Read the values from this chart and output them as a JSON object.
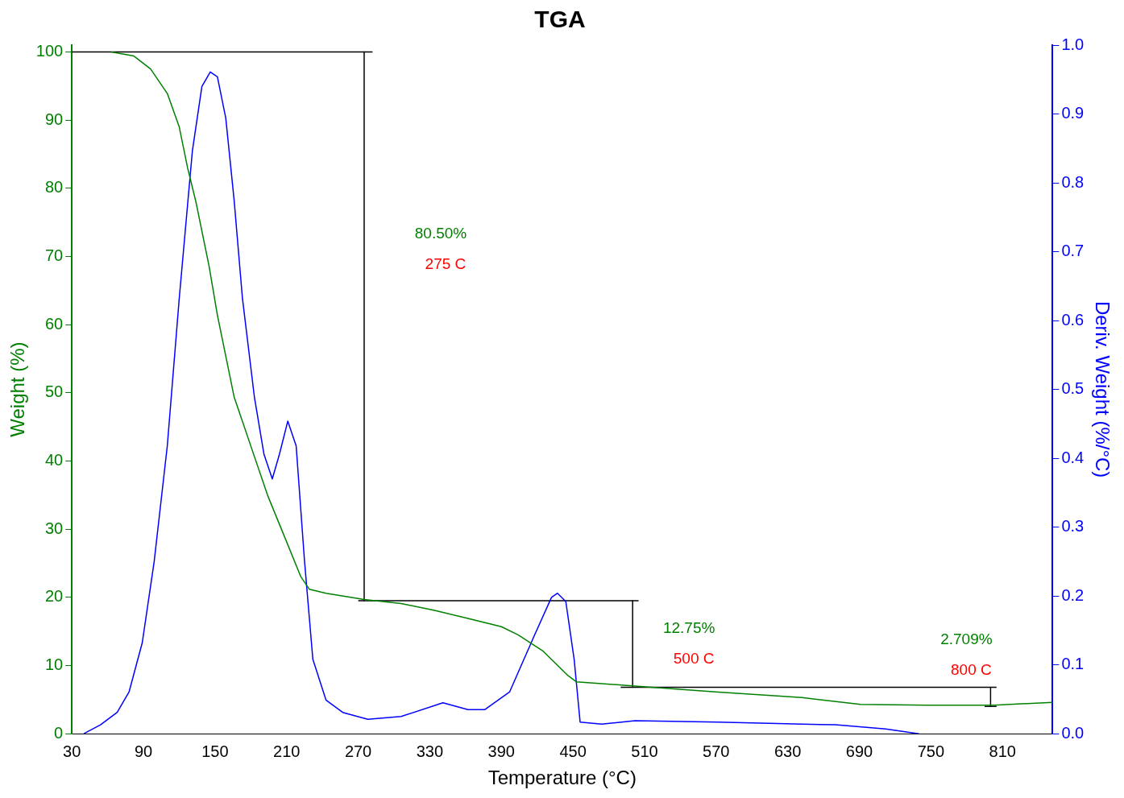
{
  "chart_data": {
    "type": "line",
    "title": "TGA",
    "xlabel": "Temperature (°C)",
    "ylabel": "Weight (%)",
    "y2label": "Deriv. Weight (%/°C)",
    "xlim": [
      30,
      852
    ],
    "xticks": [
      30,
      90,
      150,
      210,
      270,
      330,
      390,
      450,
      510,
      570,
      630,
      690,
      750,
      810
    ],
    "ylim": [
      0,
      101
    ],
    "yticks": [
      0,
      10,
      20,
      30,
      40,
      50,
      60,
      70,
      80,
      90,
      100
    ],
    "y2lim": [
      0,
      1
    ],
    "y2ticks": [
      {
        "value": 0,
        "label": "0.0"
      },
      {
        "value": 0.1,
        "label": "0.1"
      },
      {
        "value": 0.2,
        "label": "0.2"
      },
      {
        "value": 0.3,
        "label": "0.3"
      },
      {
        "value": 0.4,
        "label": "0.4"
      },
      {
        "value": 0.5,
        "label": "0.5"
      },
      {
        "value": 0.6,
        "label": "0.6"
      },
      {
        "value": 0.7,
        "label": "0.7"
      },
      {
        "value": 0.8,
        "label": "0.8"
      },
      {
        "value": 0.9,
        "label": "0.9"
      },
      {
        "value": 1,
        "label": "1.0"
      }
    ],
    "grid": false,
    "legend": false,
    "marker": "none",
    "line_style": "solid",
    "series": [
      {
        "color": "#008000",
        "x": [
          63,
          82,
          96,
          110,
          120,
          127,
          134,
          145,
          152,
          166,
          180,
          194,
          208,
          222,
          229,
          243,
          275,
          306,
          334,
          362,
          390,
          404,
          425,
          446,
          453,
          502,
          572,
          642,
          691,
          747,
          803,
          852
        ],
        "values": [
          100,
          99.4,
          97.5,
          93.9,
          89,
          83,
          78,
          68.6,
          61.4,
          49.4,
          42.2,
          35,
          29,
          23,
          21.2,
          20.6,
          19.7,
          19.1,
          18.1,
          16.9,
          15.7,
          14.5,
          12.1,
          8.5,
          7.6,
          7.0,
          6.1,
          5.3,
          4.3,
          4.2,
          4.2,
          4.6
        ]
      },
      {
        "color": "#0000ff",
        "axis": "y2",
        "x": [
          40,
          54,
          68,
          78,
          89,
          99,
          110,
          120,
          131,
          139,
          146,
          152,
          159,
          166,
          173,
          183,
          191,
          198,
          204,
          211,
          218,
          225,
          232,
          243,
          257,
          278,
          306,
          341,
          362,
          376,
          397,
          418,
          432,
          437,
          444,
          451,
          456,
          474,
          502,
          572,
          642,
          670,
          712,
          740
        ],
        "values": [
          0,
          0.013,
          0.031,
          0.061,
          0.132,
          0.25,
          0.418,
          0.632,
          0.846,
          0.94,
          0.961,
          0.954,
          0.894,
          0.775,
          0.632,
          0.489,
          0.406,
          0.37,
          0.406,
          0.454,
          0.418,
          0.251,
          0.108,
          0.049,
          0.031,
          0.021,
          0.025,
          0.045,
          0.035,
          0.035,
          0.061,
          0.144,
          0.198,
          0.204,
          0.192,
          0.108,
          0.017,
          0.014,
          0.019,
          0.017,
          0.014,
          0.013,
          0.007,
          0
        ]
      },
      {
        "color": "#000000",
        "x": [
          30,
          282
        ],
        "values": [
          100,
          100
        ]
      },
      {
        "color": "#000000",
        "x": [
          275,
          275
        ],
        "values": [
          100,
          19.5
        ]
      },
      {
        "color": "#000000",
        "x": [
          270,
          505
        ],
        "values": [
          19.5,
          19.5
        ]
      },
      {
        "color": "#000000",
        "x": [
          500,
          500
        ],
        "values": [
          19.5,
          6.8
        ]
      },
      {
        "color": "#000000",
        "x": [
          490,
          805
        ],
        "values": [
          6.8,
          6.8
        ]
      },
      {
        "color": "#000000",
        "x": [
          800,
          800
        ],
        "values": [
          6.8,
          4.0
        ]
      },
      {
        "color": "#000000",
        "x": [
          795,
          805
        ],
        "values": [
          4.0,
          4.0
        ]
      }
    ],
    "annotations": [
      "80.50%",
      "275 C",
      "12.75%",
      "500 C",
      "2.709%",
      "800 C"
    ]
  }
}
